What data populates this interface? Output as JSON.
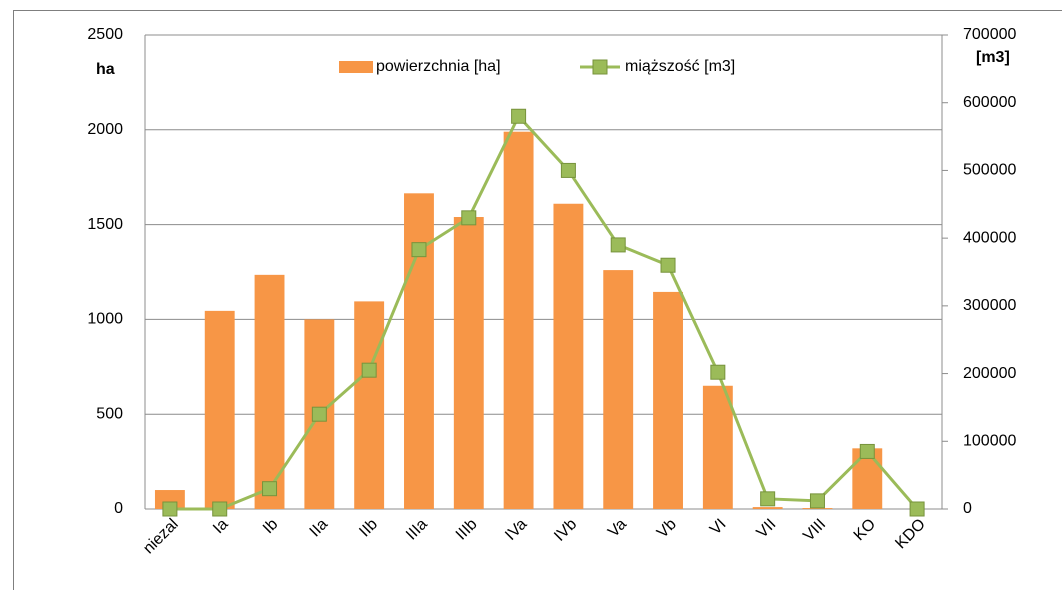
{
  "chart_data": {
    "type": "bar-line",
    "categories": [
      "niezal",
      "Ia",
      "Ib",
      "IIa",
      "IIb",
      "IIIa",
      "IIIb",
      "IVa",
      "IVb",
      "Va",
      "Vb",
      "VI",
      "VII",
      "VIII",
      "KO",
      "KDO"
    ],
    "series": [
      {
        "name": "powierzchnia [ha]",
        "type": "bar",
        "color": "#f79646",
        "axis": "y",
        "values": [
          100,
          1045,
          1235,
          1000,
          1095,
          1665,
          1540,
          1990,
          1610,
          1260,
          1145,
          650,
          10,
          5,
          320,
          0
        ]
      },
      {
        "name": "miąższość [m3]",
        "type": "line",
        "color": "#9bbb59",
        "axis": "y2",
        "values": [
          0,
          0,
          30000,
          140000,
          205000,
          383000,
          430000,
          580000,
          500000,
          390000,
          360000,
          202000,
          15000,
          12000,
          85000,
          0
        ]
      }
    ],
    "ylabel": "ha",
    "y2label": "[m3]",
    "ylim": [
      0,
      2500
    ],
    "yticks": [
      0,
      500,
      1000,
      1500,
      2000,
      2500
    ],
    "y2lim": [
      0,
      700000
    ],
    "y2ticks": [
      0,
      100000,
      200000,
      300000,
      400000,
      500000,
      600000,
      700000
    ],
    "grid": true,
    "legend": "top"
  }
}
